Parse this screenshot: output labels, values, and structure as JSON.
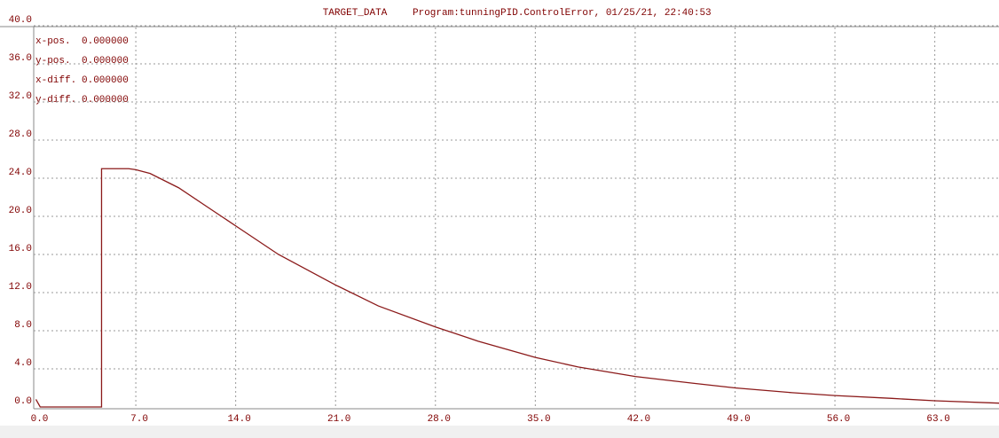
{
  "chart_data": {
    "type": "line",
    "title": "TARGET_DATA",
    "subtitle": "Program:tunningPID.ControlError, 01/25/21, 22:40:53",
    "annotations": [
      {
        "label": "x-pos.",
        "value": "0.000000"
      },
      {
        "label": "y-pos.",
        "value": "0.000000"
      },
      {
        "label": "x-diff.",
        "value": "0.000000"
      },
      {
        "label": "y-diff.",
        "value": "0.000000"
      }
    ],
    "x": [
      0,
      0.3,
      4.6,
      4.6,
      6.5,
      7,
      8,
      10,
      12,
      14,
      17,
      21,
      24,
      28,
      31,
      35,
      38,
      42,
      46,
      49,
      53,
      56,
      60,
      63,
      67.5
    ],
    "series": [
      {
        "color": "#8b1a1a",
        "values": [
          0.8,
          0,
          0,
          25,
          25,
          24.9,
          24.5,
          23,
          21,
          19,
          16,
          12.8,
          10.6,
          8.4,
          6.9,
          5.2,
          4.2,
          3.2,
          2.5,
          2.0,
          1.5,
          1.2,
          0.9,
          0.65,
          0.4
        ]
      }
    ],
    "xlim": [
      0,
      67.5
    ],
    "ylim": [
      0,
      40
    ],
    "xticks": [
      {
        "value": 0,
        "label": "0.0"
      },
      {
        "value": 7,
        "label": "7.0"
      },
      {
        "value": 14,
        "label": "14.0"
      },
      {
        "value": 21,
        "label": "21.0"
      },
      {
        "value": 28,
        "label": "28.0"
      },
      {
        "value": 35,
        "label": "35.0"
      },
      {
        "value": 42,
        "label": "42.0"
      },
      {
        "value": 49,
        "label": "49.0"
      },
      {
        "value": 56,
        "label": "56.0"
      },
      {
        "value": 63,
        "label": "63.0"
      }
    ],
    "yticks": [
      {
        "value": 0,
        "label": "0.0"
      },
      {
        "value": 4,
        "label": "4.0"
      },
      {
        "value": 8,
        "label": "8.0"
      },
      {
        "value": 12,
        "label": "12.0"
      },
      {
        "value": 16,
        "label": "16.0"
      },
      {
        "value": 20,
        "label": "20.0"
      },
      {
        "value": 24,
        "label": "24.0"
      },
      {
        "value": 28,
        "label": "28.0"
      },
      {
        "value": 32,
        "label": "32.0"
      },
      {
        "value": 36,
        "label": "36.0"
      },
      {
        "value": 40,
        "label": "40.0"
      }
    ],
    "grid": true
  }
}
